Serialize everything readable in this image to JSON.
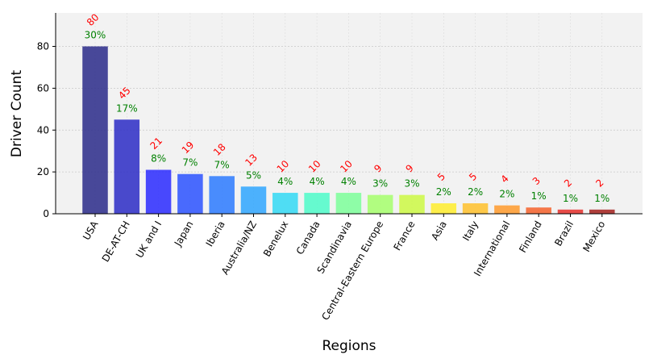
{
  "chart_data": {
    "type": "bar",
    "title": "",
    "xlabel": "Regions",
    "ylabel": "Driver Count",
    "ylim": [
      0,
      96
    ],
    "yticks": [
      0,
      20,
      40,
      60,
      80
    ],
    "grid": true,
    "categories": [
      "USA",
      "DE-AT-CH",
      "UK and I",
      "Japan",
      "Iberia",
      "Australia/NZ",
      "Benelux",
      "Canada",
      "Scandinavia",
      "Central-Eastern Europe",
      "France",
      "Asia",
      "Italy",
      "International",
      "Finland",
      "Brazil",
      "Mexico"
    ],
    "values": [
      80,
      45,
      21,
      19,
      18,
      13,
      10,
      10,
      10,
      9,
      9,
      5,
      5,
      4,
      3,
      2,
      2
    ],
    "percent_labels": [
      "30%",
      "17%",
      "8%",
      "7%",
      "7%",
      "5%",
      "4%",
      "4%",
      "4%",
      "3%",
      "3%",
      "2%",
      "2%",
      "2%",
      "1%",
      "1%",
      "1%"
    ],
    "colors": {
      "bars": [
        "#2a2a8a",
        "#2b2bc6",
        "#2a2aff",
        "#2b52ff",
        "#2c7aff",
        "#2fa6ff",
        "#33d9f4",
        "#4dfbc9",
        "#7dff9a",
        "#a6ff6c",
        "#cdf944",
        "#ffed2d",
        "#ffc12c",
        "#ff9a2c",
        "#f6622b",
        "#e52f2a",
        "#a3201c"
      ],
      "count_label": "#ff0000",
      "percent_label": "#008000",
      "plot_background": "#f2f2f2"
    }
  }
}
